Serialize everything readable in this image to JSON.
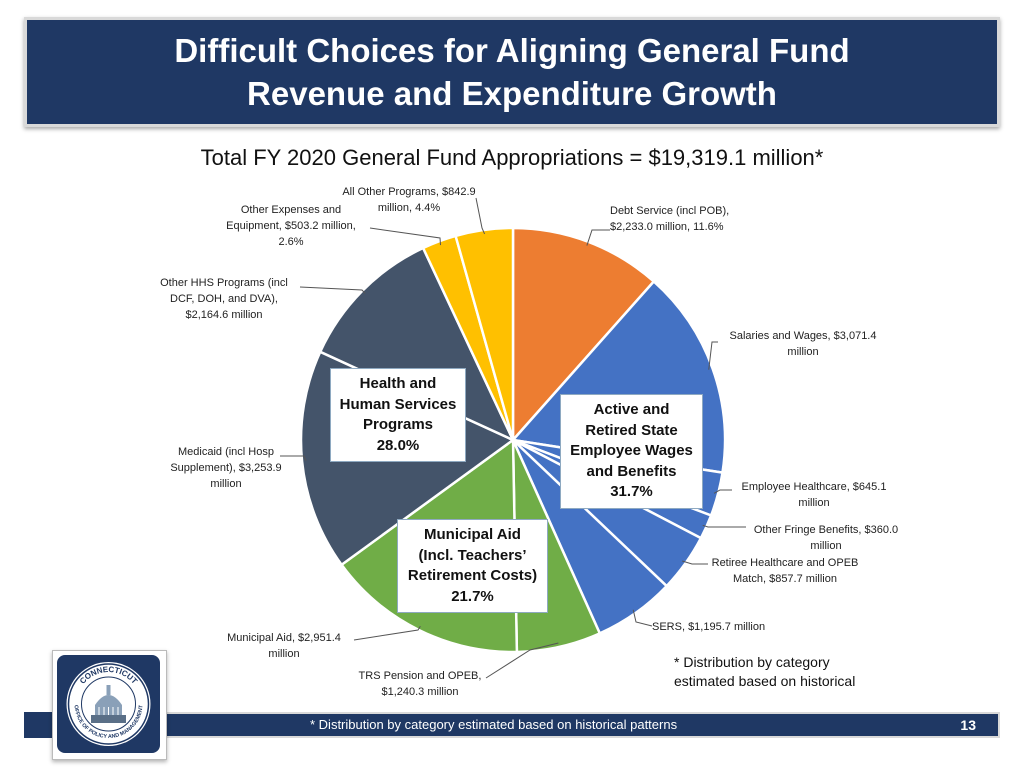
{
  "header": {
    "title_line1": "Difficult Choices for Aligning General Fund",
    "title_line2": "Revenue and Expenditure Growth"
  },
  "chart_data": {
    "type": "pie",
    "title": "Total FY 2020 General Fund Appropriations = $19,319.1 million*",
    "total": 19319.1,
    "start_angle_deg": 0,
    "direction": "clockwise",
    "slices": [
      {
        "label": "Debt Service (incl POB), $2,233.0 million, 11.6%",
        "value": 2233.0,
        "color": "#ed7d31"
      },
      {
        "label": "Salaries and Wages, $3,071.4 million",
        "value": 3071.4,
        "color": "#4472c4"
      },
      {
        "label": "Employee Healthcare, $645.1 million",
        "value": 645.1,
        "color": "#4472c4"
      },
      {
        "label": "Other Fringe Benefits, $360.0 million",
        "value": 360.0,
        "color": "#4472c4"
      },
      {
        "label": "Retiree Healthcare and OPEB Match, $857.7 million",
        "value": 857.7,
        "color": "#4472c4"
      },
      {
        "label": "SERS, $1,195.7 million",
        "value": 1195.7,
        "color": "#4472c4"
      },
      {
        "label": "TRS Pension and OPEB, $1,240.3 million",
        "value": 1240.3,
        "color": "#70ad47"
      },
      {
        "label": "Municipal Aid, $2,951.4 million",
        "value": 2951.4,
        "color": "#70ad47"
      },
      {
        "label": "Medicaid (incl Hosp Supplement), $3,253.9 million",
        "value": 3253.9,
        "color": "#44546a"
      },
      {
        "label": "Other HHS Programs (incl DCF, DOH, and DVA), $2,164.6 million",
        "value": 2164.6,
        "color": "#44546a"
      },
      {
        "label": "Other Expenses and Equipment, $503.2 million, 2.6%",
        "value": 503.2,
        "color": "#ffc000"
      },
      {
        "label": "All Other Programs, $842.9 million, 4.4%",
        "value": 842.9,
        "color": "#ffc000"
      }
    ],
    "group_labels": [
      {
        "lines": [
          "Active and",
          "Retired State",
          "Employee Wages",
          "and Benefits",
          "31.7%"
        ]
      },
      {
        "lines": [
          "Health and",
          "Human Services",
          "Programs",
          "28.0%"
        ]
      },
      {
        "lines": [
          "Municipal Aid",
          "(Incl. Teachers’",
          "Retirement Costs)",
          "21.7%"
        ]
      }
    ]
  },
  "labels": {
    "debt": [
      "Debt Service (incl POB),",
      "$2,233.0 million, 11.6%"
    ],
    "salaries": [
      "Salaries and Wages, $3,071.4",
      "million"
    ],
    "emp_health": [
      "Employee Healthcare, $645.1",
      "million"
    ],
    "fringe": [
      "Other Fringe Benefits, $360.0",
      "million"
    ],
    "retiree": [
      "Retiree Healthcare and OPEB",
      "Match, $857.7 million"
    ],
    "sers": [
      "SERS, $1,195.7 million"
    ],
    "trs": [
      "TRS Pension and OPEB,",
      "$1,240.3 million"
    ],
    "muni": [
      "Municipal Aid, $2,951.4",
      "million"
    ],
    "medicaid": [
      "Medicaid (incl Hosp",
      "Supplement), $3,253.9",
      "million"
    ],
    "other_hhs": [
      "Other HHS Programs (incl",
      "DCF, DOH, and DVA),",
      "$2,164.6 million"
    ],
    "other_exp": [
      "Other Expenses and",
      "Equipment, $503.2 million,",
      "2.6%"
    ],
    "all_other": [
      "All Other Programs, $842.9",
      "million, 4.4%"
    ]
  },
  "note": {
    "line1": "* Distribution by category",
    "line2": "estimated based on historical"
  },
  "footer": {
    "text": "* Distribution by category estimated based on historical patterns",
    "page_number": "13"
  },
  "logo": {
    "top_text": "CONNECTICUT",
    "bottom_text": "OFFICE OF POLICY AND MANAGEMENT",
    "icon": "capitol-dome-icon"
  }
}
